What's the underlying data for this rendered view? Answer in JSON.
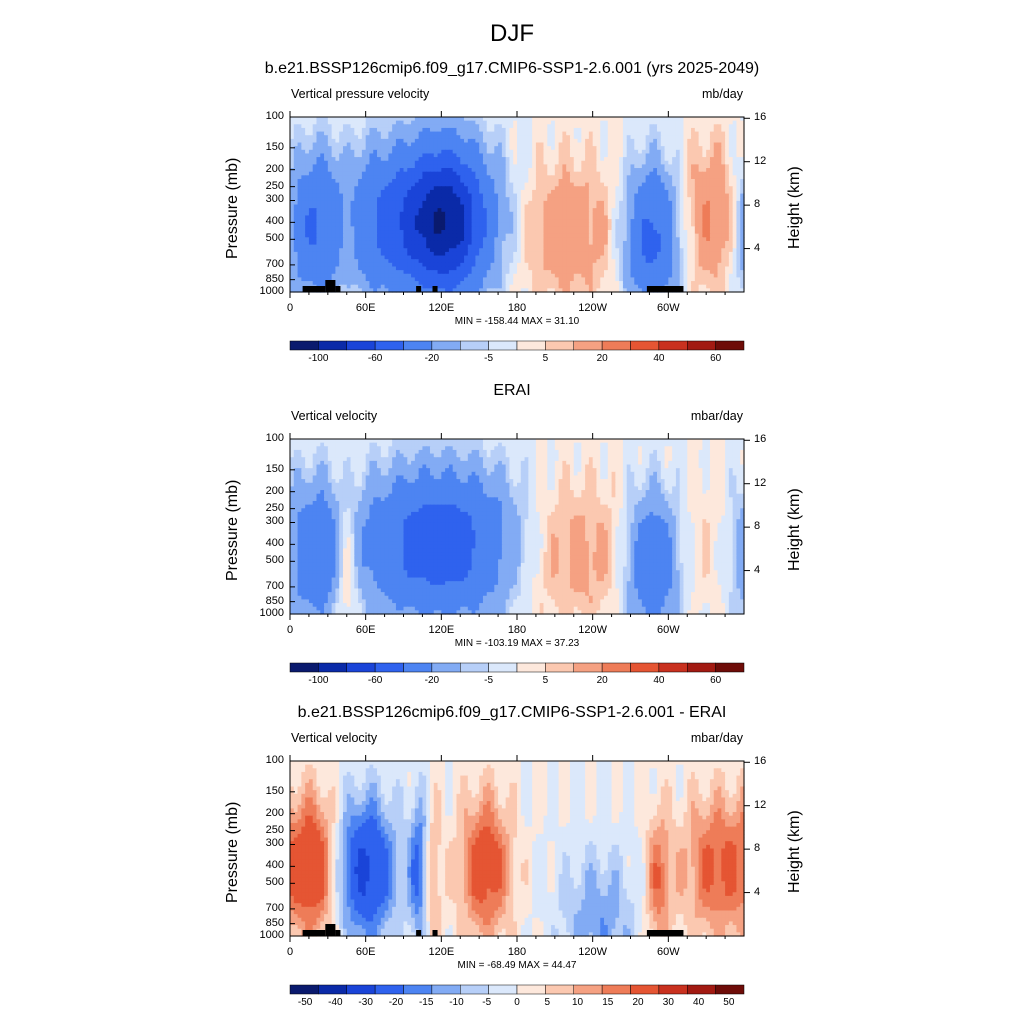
{
  "main_title": "DJF",
  "colors": {
    "palette": [
      "#0a1a6e",
      "#0a2aa8",
      "#1a44d8",
      "#2f62ee",
      "#4d84f2",
      "#82abf4",
      "#b7cff8",
      "#dbe8fb",
      "#fde8dc",
      "#fbc8b0",
      "#f5a182",
      "#ee7c58",
      "#e55533",
      "#c9311f",
      "#a21a12",
      "#6e0c08"
    ],
    "land": "#000000"
  },
  "panels": [
    {
      "title": "b.e21.BSSP126cmip6.f09_g17.CMIP6-SSP1-2.6.001 (yrs 2025-2049)",
      "left_label": "Vertical pressure velocity",
      "right_label": "mb/day",
      "y_label": "Pressure (mb)",
      "y2_label": "Height (km)",
      "stats": "MIN = -158.44  MAX =  31.10",
      "colorbar_labels": [
        "-100",
        "-60",
        "-20",
        "-5",
        "5",
        "20",
        "40",
        "60"
      ]
    },
    {
      "title": "ERAI",
      "left_label": "Vertical velocity",
      "right_label": "mbar/day",
      "y_label": "Pressure (mb)",
      "y2_label": "Height (km)",
      "stats": "MIN = -103.19  MAX =  37.23",
      "colorbar_labels": [
        "-100",
        "-60",
        "-20",
        "-5",
        "5",
        "20",
        "40",
        "60"
      ]
    },
    {
      "title": "b.e21.BSSP126cmip6.f09_g17.CMIP6-SSP1-2.6.001 - ERAI",
      "left_label": "Vertical velocity",
      "right_label": "mbar/day",
      "y_label": "Pressure (mb)",
      "y2_label": "Height (km)",
      "stats": "MIN = -68.49  MAX =  44.47",
      "colorbar_labels": [
        "-50",
        "-40",
        "-30",
        "-20",
        "-15",
        "-10",
        "-5",
        "0",
        "5",
        "10",
        "15",
        "20",
        "30",
        "40",
        "50"
      ]
    }
  ],
  "chart_data": [
    {
      "type": "heatmap",
      "title": "b.e21.BSSP126cmip6.f09_g17.CMIP6-SSP1-2.6.001 (yrs 2025-2049)",
      "subtitle": "Vertical pressure velocity",
      "units": "mb/day",
      "ylabel": "Pressure (mb)",
      "y2label": "Height (km)",
      "x_ticks": [
        "0",
        "60E",
        "120E",
        "180",
        "120W",
        "60W"
      ],
      "x_tick_lon": [
        0,
        60,
        120,
        180,
        240,
        300
      ],
      "xlim": [
        0,
        360
      ],
      "y_ticks": [
        "100",
        "150",
        "200",
        "250",
        "300",
        "400",
        "500",
        "700",
        "850",
        "1000"
      ],
      "y_tick_p": [
        100,
        150,
        200,
        250,
        300,
        400,
        500,
        700,
        850,
        1000
      ],
      "ylim": [
        1000,
        100
      ],
      "y_scale": "log",
      "y2_ticks": [
        "4",
        "8",
        "12",
        "16"
      ],
      "y2_tick_km": [
        4,
        8,
        12,
        16
      ],
      "levels": [
        -120,
        -100,
        -80,
        -60,
        -40,
        -20,
        -10,
        -5,
        0,
        5,
        10,
        20,
        30,
        40,
        50,
        60,
        70
      ],
      "min": -158.44,
      "max": 31.1,
      "features": [
        {
          "lon": 15,
          "width": 28,
          "amp": -38,
          "center_p": 420
        },
        {
          "lon": 45,
          "width": 10,
          "amp": 16,
          "center_p": 450
        },
        {
          "lon": 105,
          "width": 60,
          "amp": -62,
          "center_p": 400
        },
        {
          "lon": 125,
          "width": 26,
          "amp": -45,
          "center_p": 380
        },
        {
          "lon": 215,
          "width": 50,
          "amp": 18,
          "center_p": 450
        },
        {
          "lon": 287,
          "width": 22,
          "amp": -48,
          "center_p": 500
        },
        {
          "lon": 340,
          "width": 28,
          "amp": 26,
          "center_p": 380
        }
      ]
    },
    {
      "type": "heatmap",
      "title": "ERAI",
      "subtitle": "Vertical velocity",
      "units": "mbar/day",
      "ylabel": "Pressure (mb)",
      "y2label": "Height (km)",
      "x_ticks": [
        "0",
        "60E",
        "120E",
        "180",
        "120W",
        "60W"
      ],
      "x_tick_lon": [
        0,
        60,
        120,
        180,
        240,
        300
      ],
      "xlim": [
        0,
        360
      ],
      "y_ticks": [
        "100",
        "150",
        "200",
        "250",
        "300",
        "400",
        "500",
        "700",
        "850",
        "1000"
      ],
      "y_tick_p": [
        100,
        150,
        200,
        250,
        300,
        400,
        500,
        700,
        850,
        1000
      ],
      "ylim": [
        1000,
        100
      ],
      "y_scale": "log",
      "y2_ticks": [
        "4",
        "8",
        "12",
        "16"
      ],
      "y2_tick_km": [
        4,
        8,
        12,
        16
      ],
      "levels": [
        -120,
        -100,
        -80,
        -60,
        -40,
        -20,
        -10,
        -5,
        0,
        5,
        10,
        20,
        30,
        40,
        50,
        60,
        70
      ],
      "min": -103.19,
      "max": 37.23,
      "features": [
        {
          "lon": 18,
          "width": 26,
          "amp": -32,
          "center_p": 450
        },
        {
          "lon": 45,
          "width": 10,
          "amp": 22,
          "center_p": 500
        },
        {
          "lon": 120,
          "width": 62,
          "amp": -55,
          "center_p": 400
        },
        {
          "lon": 220,
          "width": 55,
          "amp": 16,
          "center_p": 450
        },
        {
          "lon": 287,
          "width": 22,
          "amp": -38,
          "center_p": 520
        },
        {
          "lon": 335,
          "width": 30,
          "amp": 6,
          "center_p": 400
        }
      ]
    },
    {
      "type": "heatmap",
      "title": "b.e21.BSSP126cmip6.f09_g17.CMIP6-SSP1-2.6.001 - ERAI",
      "subtitle": "Vertical velocity",
      "units": "mbar/day",
      "ylabel": "Pressure (mb)",
      "y2label": "Height (km)",
      "x_ticks": [
        "0",
        "60E",
        "120E",
        "180",
        "120W",
        "60W"
      ],
      "x_tick_lon": [
        0,
        60,
        120,
        180,
        240,
        300
      ],
      "xlim": [
        0,
        360
      ],
      "y_ticks": [
        "100",
        "150",
        "200",
        "250",
        "300",
        "400",
        "500",
        "700",
        "850",
        "1000"
      ],
      "y_tick_p": [
        100,
        150,
        200,
        250,
        300,
        400,
        500,
        700,
        850,
        1000
      ],
      "ylim": [
        1000,
        100
      ],
      "y_scale": "log",
      "y2_ticks": [
        "4",
        "8",
        "12",
        "16"
      ],
      "y2_tick_km": [
        4,
        8,
        12,
        16
      ],
      "levels": [
        -60,
        -50,
        -40,
        -30,
        -20,
        -15,
        -10,
        -5,
        0,
        5,
        10,
        15,
        20,
        30,
        40,
        50,
        60
      ],
      "min": -68.49,
      "max": 44.47,
      "features": [
        {
          "lon": 20,
          "width": 18,
          "amp": 26,
          "center_p": 400
        },
        {
          "lon": 60,
          "width": 24,
          "amp": -32,
          "center_p": 420
        },
        {
          "lon": 103,
          "width": 8,
          "amp": -24,
          "center_p": 420
        },
        {
          "lon": 112,
          "width": 8,
          "amp": 14,
          "center_p": 450
        },
        {
          "lon": 155,
          "width": 20,
          "amp": 26,
          "center_p": 400
        },
        {
          "lon": 245,
          "width": 30,
          "amp": -14,
          "center_p": 850
        },
        {
          "lon": 292,
          "width": 10,
          "amp": 18,
          "center_p": 500
        },
        {
          "lon": 340,
          "width": 30,
          "amp": 22,
          "center_p": 400
        }
      ]
    }
  ]
}
